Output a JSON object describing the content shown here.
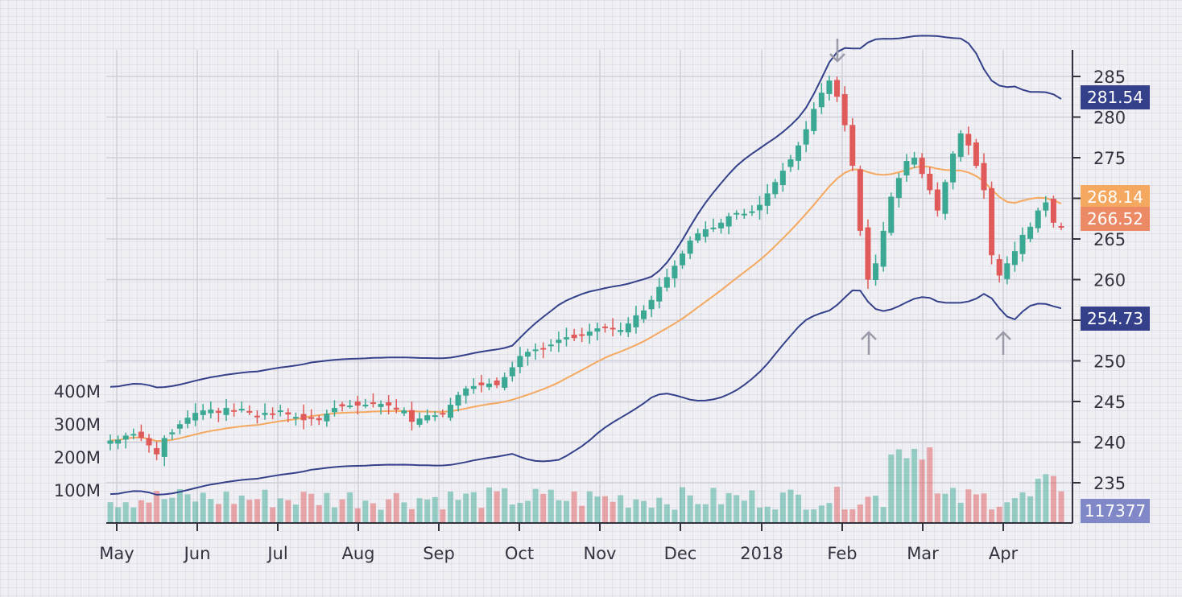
{
  "chart_data": {
    "type": "candlestick",
    "title": "",
    "grid": true,
    "x_tick_labels": [
      "May",
      "Jun",
      "Jul",
      "Aug",
      "Sep",
      "Oct",
      "Nov",
      "Dec",
      "2018",
      "Feb",
      "Mar",
      "Apr"
    ],
    "price_axis": {
      "ticks": [
        235,
        240,
        245,
        250,
        255,
        260,
        265,
        270,
        275,
        280,
        285
      ],
      "range": [
        230,
        287.5
      ],
      "side": "right"
    },
    "volume_axis": {
      "tick_labels": [
        "100M",
        "200M",
        "300M",
        "400M"
      ],
      "ticks": [
        100,
        200,
        300,
        400
      ],
      "unit": "M",
      "side": "left"
    },
    "last_values": {
      "upper_band": "281.54",
      "moving_average": "268.14",
      "close": "266.52",
      "lower_band": "254.73",
      "volume": "117377"
    },
    "close_series": [
      [
        "May",
        240.2
      ],
      [
        "",
        240.3
      ],
      [
        "",
        240.8
      ],
      [
        "",
        241
      ],
      [
        "",
        240.5
      ],
      [
        "",
        239.6
      ],
      [
        "",
        238.5
      ],
      [
        "",
        240.5
      ],
      [
        "",
        241.2
      ],
      [
        "",
        242.2
      ],
      [
        "",
        243.0
      ],
      [
        "Jun",
        243.6
      ],
      [
        "",
        243.9
      ],
      [
        "",
        244
      ],
      [
        "",
        243.6
      ],
      [
        "",
        244.2
      ],
      [
        "",
        243.8
      ],
      [
        "",
        244.1
      ],
      [
        "",
        243.7
      ],
      [
        "",
        243.2
      ],
      [
        "",
        243.6
      ],
      [
        "Jul",
        243.5
      ],
      [
        "",
        243.9
      ],
      [
        "",
        243.4
      ],
      [
        "",
        243.1
      ],
      [
        "",
        242.7
      ],
      [
        "",
        242.9
      ],
      [
        "",
        242.7
      ],
      [
        "",
        243.5
      ],
      [
        "",
        244.2
      ],
      [
        "",
        244.4
      ],
      [
        "",
        244.5
      ],
      [
        "Aug",
        244.5
      ],
      [
        "",
        244.6
      ],
      [
        "",
        244.8
      ],
      [
        "",
        244.7
      ],
      [
        "",
        244.5
      ],
      [
        "",
        244.0
      ],
      [
        "",
        243.9
      ],
      [
        "",
        242.5
      ],
      [
        "",
        242.9
      ],
      [
        "",
        243.3
      ],
      [
        "Sep",
        243.3
      ],
      [
        "",
        243.5
      ],
      [
        "",
        244.6
      ],
      [
        "",
        245.8
      ],
      [
        "",
        246.6
      ],
      [
        "",
        246.9
      ],
      [
        "",
        247.0
      ],
      [
        "",
        247.2
      ],
      [
        "",
        247.0
      ],
      [
        "",
        248.0
      ],
      [
        "Oct",
        249.2
      ],
      [
        "",
        250.6
      ],
      [
        "",
        251.1
      ],
      [
        "",
        251.4
      ],
      [
        "",
        251.5
      ],
      [
        "",
        252.0
      ],
      [
        "",
        252.6
      ],
      [
        "",
        252.9
      ],
      [
        "",
        252.8
      ],
      [
        "",
        253.2
      ],
      [
        "",
        253.6
      ],
      [
        "Nov",
        254.0
      ],
      [
        "",
        254.1
      ],
      [
        "",
        253.9
      ],
      [
        "",
        253.8
      ],
      [
        "",
        254.6
      ],
      [
        "",
        255.6
      ],
      [
        "",
        256.2
      ],
      [
        "",
        257.5
      ],
      [
        "",
        259.1
      ],
      [
        "",
        260.3
      ],
      [
        "Dec",
        261.7
      ],
      [
        "",
        263.2
      ],
      [
        "",
        264.8
      ],
      [
        "",
        265.7
      ],
      [
        "",
        266.2
      ],
      [
        "",
        266.4
      ],
      [
        "",
        267.0
      ],
      [
        "",
        267.8
      ],
      [
        "",
        268.2
      ],
      [
        "",
        268.1
      ],
      [
        "",
        268.4
      ],
      [
        "2018",
        269.2
      ],
      [
        "",
        270.6
      ],
      [
        "",
        272.0
      ],
      [
        "",
        273.4
      ],
      [
        "",
        274.8
      ],
      [
        "",
        276.5
      ],
      [
        "",
        278.5
      ],
      [
        "",
        281.0
      ],
      [
        "",
        283.0
      ],
      [
        "",
        284.5
      ],
      [
        "Feb",
        282.5
      ],
      [
        "",
        279.0
      ],
      [
        "",
        274.0
      ],
      [
        "",
        266.0
      ],
      [
        "",
        260.0
      ],
      [
        "",
        262.0
      ],
      [
        "",
        266.0
      ],
      [
        "",
        270.2
      ],
      [
        "",
        272.5
      ],
      [
        "",
        274.6
      ],
      [
        "Mar",
        275.0
      ],
      [
        "",
        273.0
      ],
      [
        "",
        271.0
      ],
      [
        "",
        268.5
      ],
      [
        "",
        272.0
      ],
      [
        "",
        275.5
      ],
      [
        "",
        278.0
      ],
      [
        "",
        276.5
      ],
      [
        "",
        274.0
      ],
      [
        "",
        271.0
      ],
      [
        "Apr",
        263.0
      ],
      [
        "",
        260.5
      ],
      [
        "",
        262.0
      ],
      [
        "",
        263.5
      ],
      [
        "",
        265.5
      ],
      [
        "",
        266.5
      ],
      [
        "",
        268.5
      ],
      [
        "",
        269.5
      ],
      [
        "",
        267.0
      ],
      [
        "",
        266.5
      ]
    ]
  }
}
